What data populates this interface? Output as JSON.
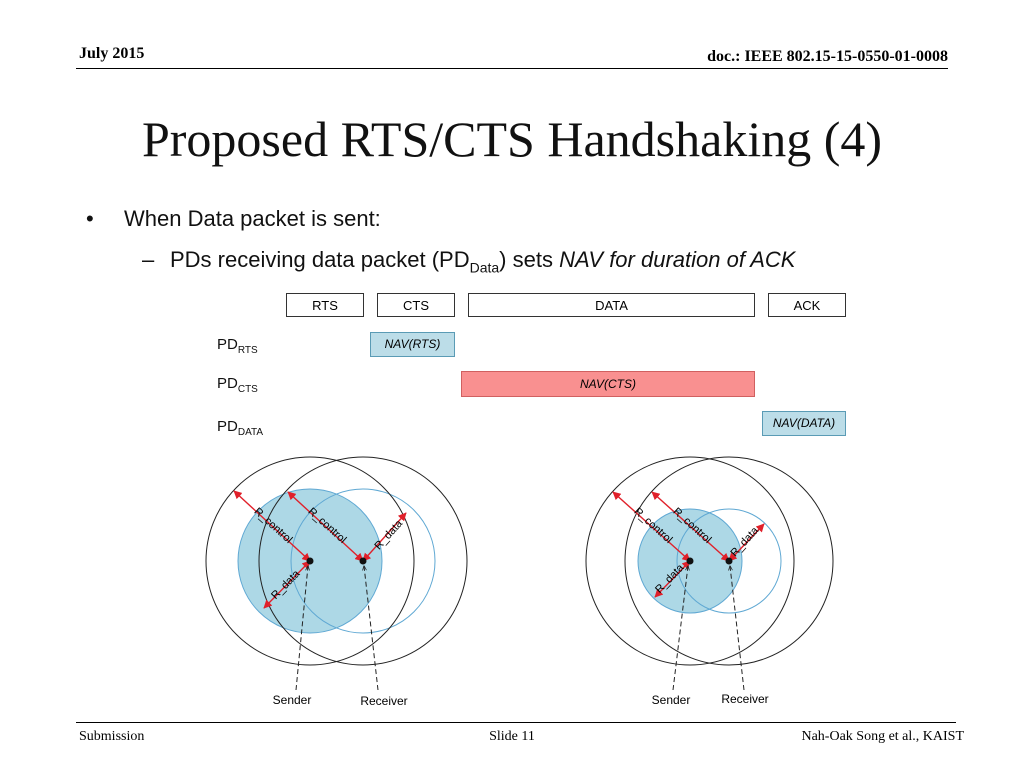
{
  "header": {
    "date": "July 2015",
    "doc": "doc.: IEEE 802.15-15-0550-01-0008"
  },
  "title": "Proposed RTS/CTS Handshaking (4)",
  "bullets": {
    "level1": "When Data packet is sent:",
    "level2": {
      "pre": "PDs receiving data packet (PD",
      "sub": "Data",
      "mid": ") sets ",
      "italic": "NAV for duration of ACK"
    }
  },
  "frames": [
    "RTS",
    "CTS",
    "DATA",
    "ACK"
  ],
  "pd_rows": [
    {
      "base": "PD",
      "sub": "RTS",
      "nav": "NAV(RTS)"
    },
    {
      "base": "PD",
      "sub": "CTS",
      "nav": "NAV(CTS)"
    },
    {
      "base": "PD",
      "sub": "DATA",
      "nav": "NAV(DATA)"
    }
  ],
  "diagram": {
    "labels": {
      "r_control": "R_control",
      "r_data": "R_data",
      "sender": "Sender",
      "receiver": "Receiver"
    },
    "colors": {
      "data_fill": "#add8e6",
      "data_stroke": "#5fa8d3",
      "arrow": "#e0202a",
      "nav_cts": "#f99090",
      "nav_blue": "#bcdde8"
    }
  },
  "footer": {
    "left": "Submission",
    "center": "Slide 11",
    "right": "Nah-Oak Song et al., KAIST"
  }
}
